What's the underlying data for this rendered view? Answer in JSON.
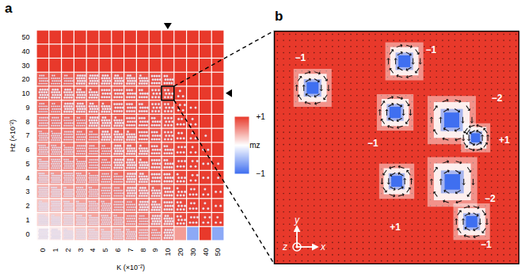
{
  "chart_data": [
    {
      "type": "heatmap",
      "title": "a",
      "x_label": "K (×10⁻²)",
      "y_label": "Hz (×10⁻²)",
      "x": [
        0,
        1,
        2,
        3,
        4,
        5,
        6,
        7,
        8,
        9,
        10,
        20,
        30,
        40,
        50
      ],
      "y": [
        0,
        1,
        2,
        3,
        4,
        5,
        6,
        7,
        8,
        9,
        10,
        20,
        30,
        40,
        50
      ],
      "mz": [
        [
          0.05,
          0.1,
          0.18,
          0.25,
          0.32,
          0.4,
          0.46,
          0.52,
          0.58,
          0.64,
          0.7,
          0.5,
          -0.6,
          1,
          -0.6
        ],
        [
          0.2,
          0.26,
          0.32,
          0.4,
          0.46,
          0.52,
          0.58,
          0.63,
          0.68,
          0.72,
          0.76,
          0.9,
          0.94,
          0.96,
          0.97
        ],
        [
          0.3,
          0.35,
          0.42,
          0.48,
          0.54,
          0.6,
          0.64,
          0.68,
          0.72,
          0.76,
          0.8,
          0.92,
          0.95,
          0.97,
          0.98
        ],
        [
          0.4,
          0.44,
          0.5,
          0.55,
          0.6,
          0.64,
          0.68,
          0.72,
          0.76,
          0.79,
          0.82,
          0.92,
          0.95,
          0.97,
          0.98
        ],
        [
          0.48,
          0.52,
          0.56,
          0.6,
          0.65,
          0.69,
          0.72,
          0.75,
          0.78,
          0.81,
          0.84,
          0.93,
          0.96,
          0.98,
          0.99
        ],
        [
          0.55,
          0.58,
          0.62,
          0.66,
          0.7,
          0.73,
          0.76,
          0.78,
          0.8,
          0.83,
          0.85,
          0.94,
          0.96,
          0.98,
          0.99
        ],
        [
          0.6,
          0.63,
          0.66,
          0.7,
          0.73,
          0.76,
          0.78,
          0.8,
          0.82,
          0.84,
          0.86,
          0.94,
          0.97,
          0.98,
          1
        ],
        [
          0.66,
          0.68,
          0.7,
          0.73,
          0.76,
          0.78,
          0.8,
          0.82,
          0.84,
          0.85,
          0.87,
          0.95,
          0.97,
          0.99,
          1
        ],
        [
          0.7,
          0.72,
          0.74,
          0.76,
          0.78,
          0.8,
          0.82,
          0.84,
          0.85,
          0.86,
          0.87,
          0.95,
          0.97,
          1,
          1
        ],
        [
          0.74,
          0.75,
          0.77,
          0.79,
          0.8,
          0.82,
          0.83,
          0.85,
          0.86,
          0.87,
          0.88,
          0.96,
          0.98,
          1,
          1
        ],
        [
          0.78,
          0.78,
          0.8,
          0.8,
          0.82,
          0.83,
          0.84,
          0.85,
          0.86,
          0.87,
          0.88,
          0.97,
          1,
          1,
          1
        ],
        [
          0.8,
          0.8,
          0.8,
          0.82,
          0.82,
          0.83,
          0.84,
          0.85,
          0.86,
          0.87,
          0.88,
          1,
          1,
          1,
          1
        ],
        [
          1,
          1,
          1,
          1,
          1,
          1,
          1,
          1,
          1,
          1,
          1,
          1,
          1,
          1,
          1
        ],
        [
          1,
          1,
          1,
          1,
          1,
          1,
          1,
          1,
          1,
          1,
          1,
          1,
          1,
          1,
          1
        ],
        [
          1,
          1,
          1,
          1,
          1,
          1,
          1,
          1,
          1,
          1,
          1,
          1,
          1,
          1,
          1
        ]
      ],
      "skyrmion_counts": [
        [
          36,
          34,
          32,
          30,
          28,
          26,
          24,
          22,
          20,
          18,
          16,
          0,
          0,
          0,
          0
        ],
        [
          34,
          32,
          30,
          28,
          26,
          24,
          22,
          20,
          18,
          16,
          14,
          8,
          6,
          4,
          3
        ],
        [
          32,
          30,
          28,
          26,
          24,
          22,
          20,
          18,
          16,
          14,
          12,
          8,
          5,
          3,
          2
        ],
        [
          30,
          28,
          26,
          24,
          22,
          20,
          18,
          16,
          15,
          13,
          11,
          7,
          5,
          3,
          2
        ],
        [
          28,
          26,
          25,
          23,
          21,
          19,
          17,
          16,
          14,
          12,
          11,
          7,
          4,
          2,
          1
        ],
        [
          26,
          25,
          23,
          21,
          20,
          18,
          16,
          15,
          13,
          12,
          10,
          6,
          4,
          2,
          1
        ],
        [
          24,
          23,
          21,
          20,
          18,
          17,
          15,
          14,
          13,
          11,
          10,
          6,
          3,
          2,
          0
        ],
        [
          22,
          21,
          20,
          18,
          17,
          15,
          14,
          13,
          12,
          11,
          9,
          5,
          3,
          1,
          0
        ],
        [
          20,
          19,
          18,
          17,
          16,
          14,
          13,
          12,
          11,
          10,
          9,
          5,
          3,
          0,
          0
        ],
        [
          18,
          17,
          16,
          15,
          14,
          13,
          12,
          11,
          10,
          9,
          8,
          4,
          2,
          0,
          0
        ],
        [
          16,
          15,
          15,
          14,
          13,
          12,
          12,
          11,
          10,
          9,
          8,
          3,
          0,
          0,
          0
        ],
        [
          18,
          17,
          17,
          16,
          16,
          15,
          14,
          14,
          13,
          12,
          10,
          0,
          0,
          0,
          0
        ],
        [
          0,
          0,
          0,
          0,
          0,
          0,
          0,
          0,
          0,
          0,
          0,
          0,
          0,
          0,
          0
        ],
        [
          0,
          0,
          0,
          0,
          0,
          0,
          0,
          0,
          0,
          0,
          0,
          0,
          0,
          0,
          0
        ],
        [
          0,
          0,
          0,
          0,
          0,
          0,
          0,
          0,
          0,
          0,
          0,
          0,
          0,
          0,
          0
        ]
      ],
      "highlight": {
        "K": 10,
        "Hz": 10
      },
      "colorbar": {
        "label": "mz",
        "range": [
          -1,
          1
        ],
        "ticks": [
          {
            "value": 1,
            "label": "+1"
          },
          {
            "value": -1,
            "label": "−1"
          }
        ],
        "colors": [
          "#3f6ff0",
          "#ffffff",
          "#e8392b"
        ]
      }
    },
    {
      "type": "spin_texture",
      "title": "b",
      "xlim": [
        0,
        40
      ],
      "ylim": [
        0,
        38
      ],
      "tick_labels": false,
      "axes_labels": [
        "x",
        "y",
        "z"
      ],
      "skyrmions": [
        {
          "x": 6.25,
          "y": 28.75,
          "radius": 2.6,
          "charge": -1,
          "label": "−1",
          "label_x": 4.25,
          "label_y": 33.6
        },
        {
          "x": 21.25,
          "y": 33.1,
          "radius": 2.6,
          "charge": -1,
          "label": "−1",
          "label_x": 25.6,
          "label_y": 34.9
        },
        {
          "x": 19.75,
          "y": 24.75,
          "radius": 2.5,
          "charge": -1,
          "label": "−1",
          "label_x": 16.1,
          "label_y": 19.75
        },
        {
          "x": 29,
          "y": 23.5,
          "radius": 3.3,
          "charge": -2,
          "label": "−2",
          "label_x": 36.4,
          "label_y": 27.1
        },
        {
          "x": 32.9,
          "y": 20.6,
          "radius": 2.0,
          "charge": 1,
          "label": "+1",
          "label_x": 37.6,
          "label_y": 20.25
        },
        {
          "x": 20,
          "y": 13.5,
          "radius": 2.4,
          "charge": 1,
          "label": "+1",
          "label_x": 19.75,
          "label_y": 6
        },
        {
          "x": 29.1,
          "y": 13.4,
          "radius": 3.4,
          "charge": -2,
          "label": "−2",
          "label_x": 35.25,
          "label_y": 10.6
        },
        {
          "x": 32.25,
          "y": 6.9,
          "radius": 2.5,
          "charge": -1,
          "label": "−1",
          "label_x": 34.6,
          "label_y": 3.1
        }
      ]
    }
  ]
}
